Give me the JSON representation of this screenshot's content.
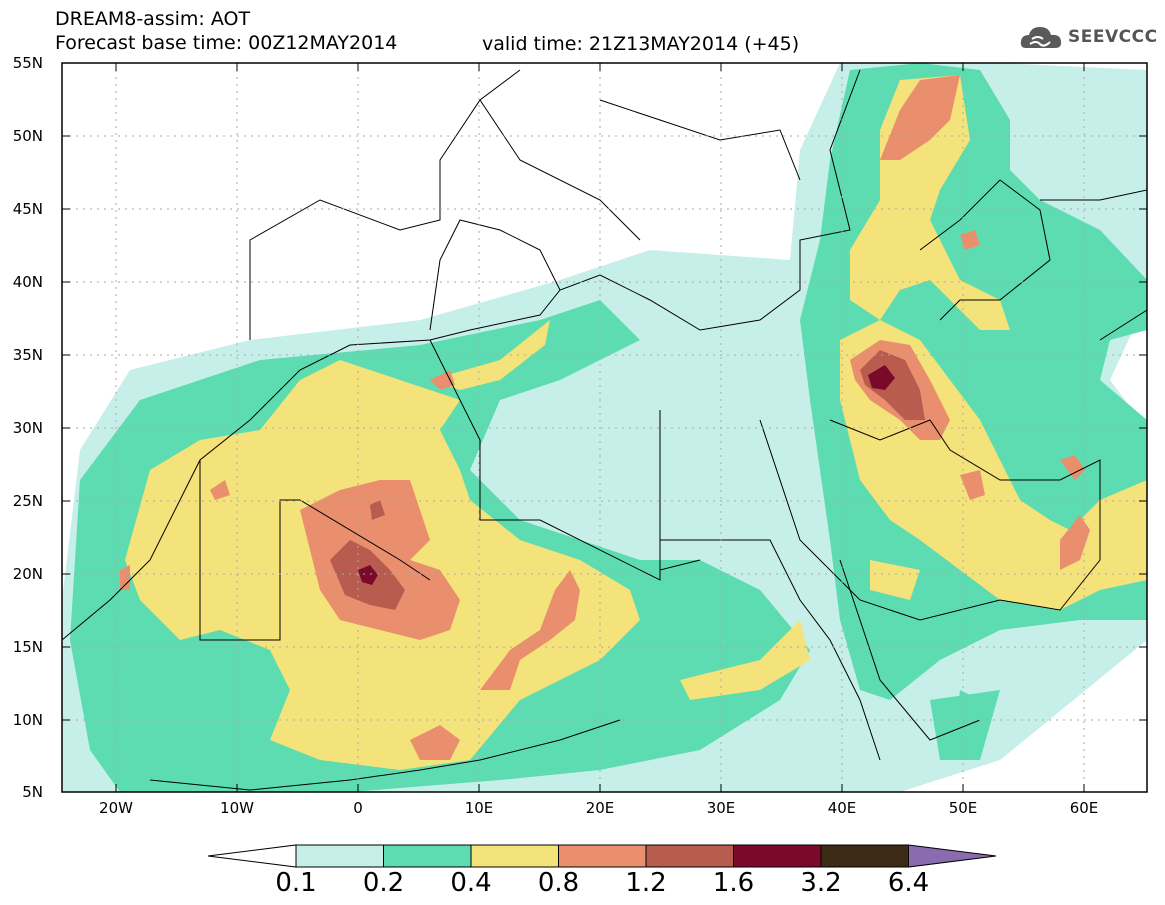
{
  "title": {
    "line1": "DREAM8-assim: AOT",
    "line2": "Forecast base time: 00Z12MAY2014",
    "valid": "valid time: 21Z13MAY2014 (+45)"
  },
  "logo": {
    "text": "SEEVCCC",
    "icon": "cloud-icon"
  },
  "axes": {
    "lat_labels": [
      "55N",
      "50N",
      "45N",
      "40N",
      "35N",
      "30N",
      "25N",
      "20N",
      "15N",
      "10N",
      "5N"
    ],
    "lon_labels": [
      "20W",
      "10W",
      "0",
      "10E",
      "20E",
      "30E",
      "40E",
      "50E",
      "60E"
    ]
  },
  "colorbar": {
    "labels": [
      "0.1",
      "0.2",
      "0.4",
      "0.8",
      "1.2",
      "1.6",
      "3.2",
      "6.4"
    ],
    "colors": [
      "#c6efe9",
      "#5cdcb0",
      "#f4e27a",
      "#e98f6d",
      "#b85c4f",
      "#7a0a2a",
      "#3d2a16",
      "#8b6bb0"
    ],
    "under_color": "#ffffff"
  },
  "map": {
    "lon_range": [
      -25,
      65
    ],
    "lat_range": [
      5,
      55
    ],
    "colors": {
      "land_border": "#000000",
      "grid": "#aaaaaa"
    }
  }
}
